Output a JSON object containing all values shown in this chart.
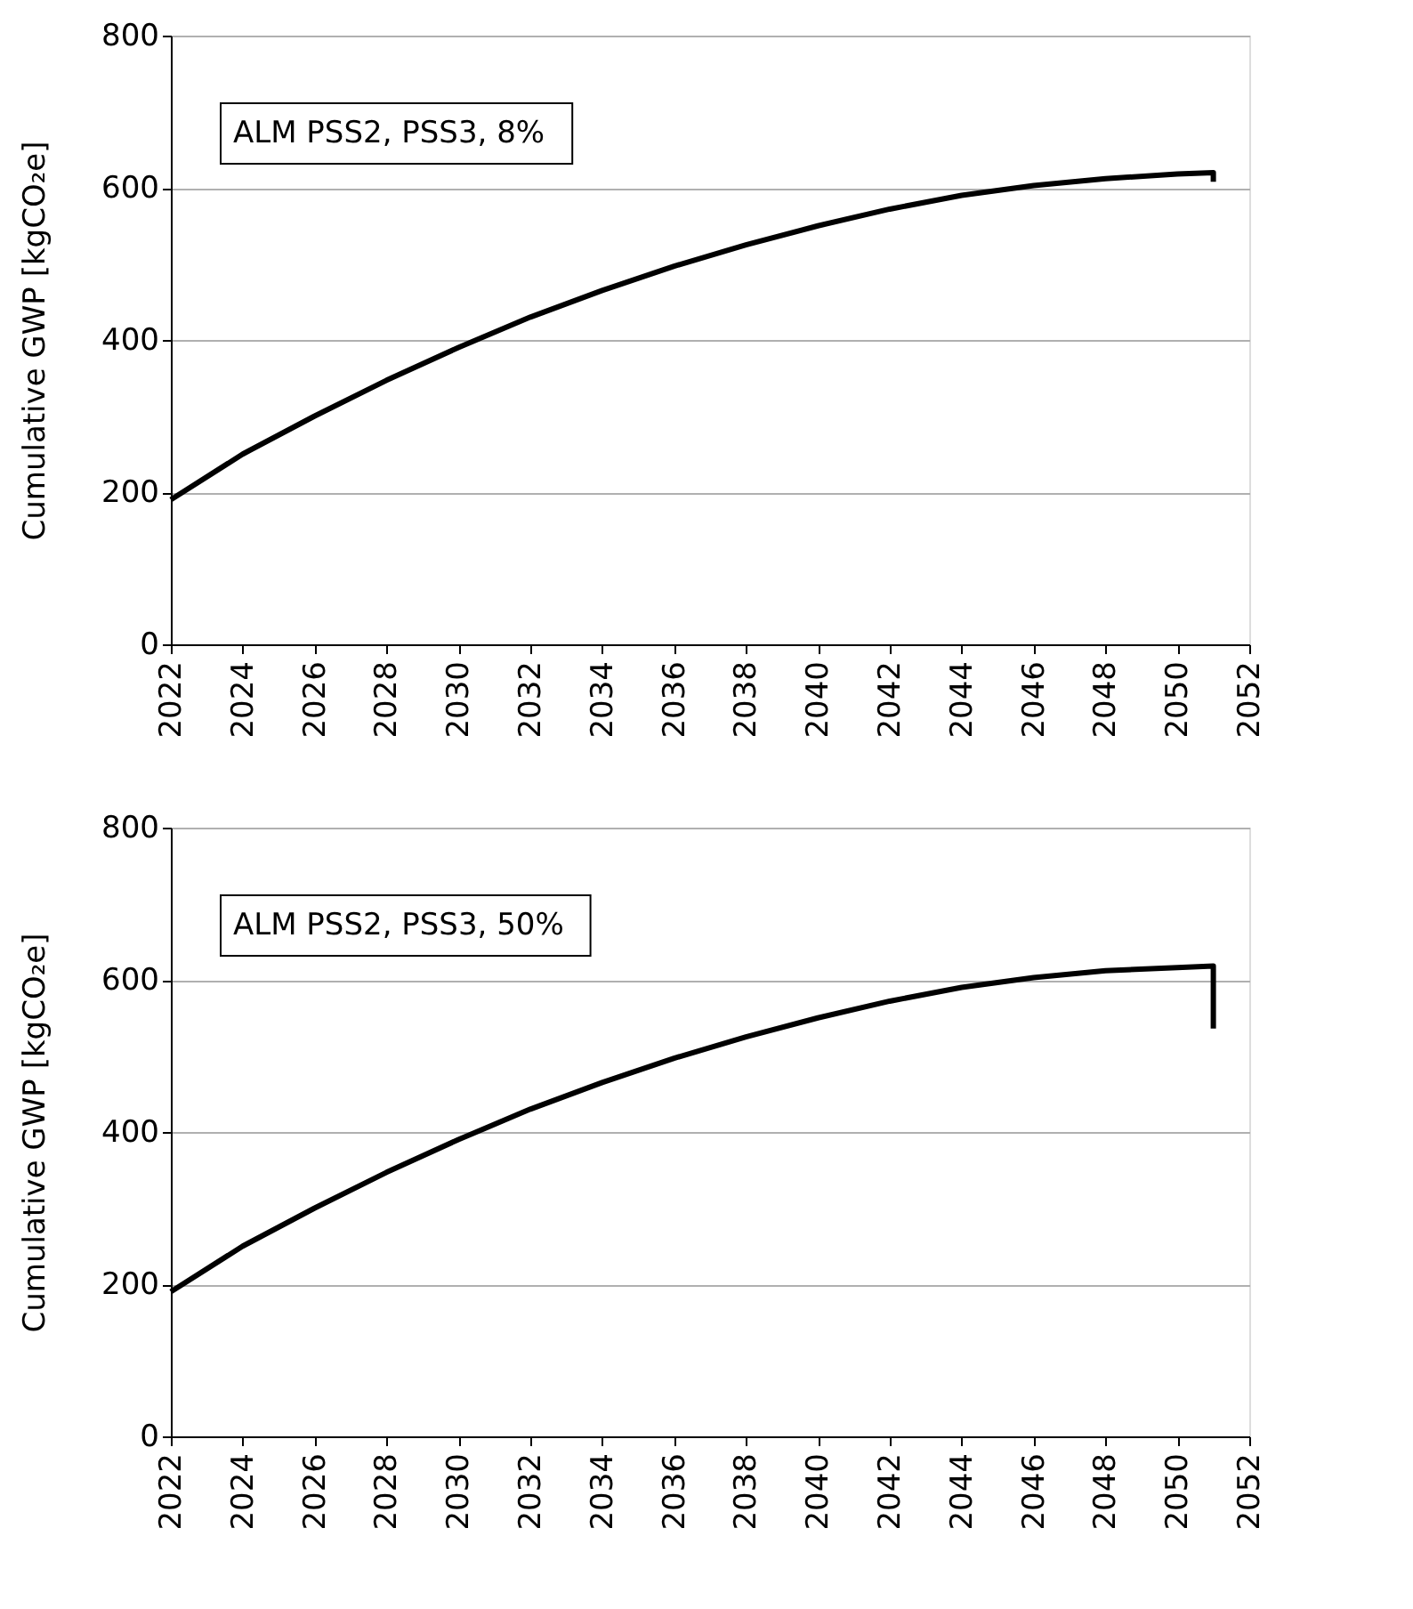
{
  "chart_data": [
    {
      "type": "line",
      "ylabel": "Cumulative GWP [kgCO₂e]",
      "annotations": [
        "ALM PSS2, PSS3, 8%"
      ],
      "series": [
        {
          "color": "#000000",
          "x": [
            2022,
            2024,
            2026,
            2028,
            2030,
            2032,
            2034,
            2036,
            2038,
            2040,
            2042,
            2044,
            2046,
            2048,
            2050,
            2051,
            2051
          ],
          "values": [
            190,
            250,
            300,
            347,
            390,
            430,
            465,
            497,
            525,
            550,
            572,
            590,
            603,
            612,
            618,
            620,
            608
          ]
        }
      ],
      "xlim": [
        2022,
        2052
      ],
      "xticks": [
        2022,
        2024,
        2026,
        2028,
        2030,
        2032,
        2034,
        2036,
        2038,
        2040,
        2042,
        2044,
        2046,
        2048,
        2050,
        2052
      ],
      "ylim": [
        0,
        800
      ],
      "yticks": [
        0,
        200,
        400,
        600,
        800
      ],
      "grid": "y",
      "marker": "none",
      "line_style": "solid"
    },
    {
      "type": "line",
      "ylabel": "Cumulative GWP [kgCO₂e]",
      "annotations": [
        "ALM PSS2, PSS3, 50%"
      ],
      "series": [
        {
          "color": "#000000",
          "x": [
            2022,
            2024,
            2026,
            2028,
            2030,
            2032,
            2034,
            2036,
            2038,
            2040,
            2042,
            2044,
            2046,
            2048,
            2050,
            2051,
            2051
          ],
          "values": [
            190,
            250,
            300,
            347,
            390,
            430,
            465,
            497,
            525,
            550,
            572,
            590,
            603,
            612,
            616,
            618,
            536
          ]
        }
      ],
      "xlim": [
        2022,
        2052
      ],
      "xticks": [
        2022,
        2024,
        2026,
        2028,
        2030,
        2032,
        2034,
        2036,
        2038,
        2040,
        2042,
        2044,
        2046,
        2048,
        2050,
        2052
      ],
      "ylim": [
        0,
        800
      ],
      "yticks": [
        0,
        200,
        400,
        600,
        800
      ],
      "grid": "y",
      "marker": "none",
      "line_style": "solid"
    }
  ]
}
